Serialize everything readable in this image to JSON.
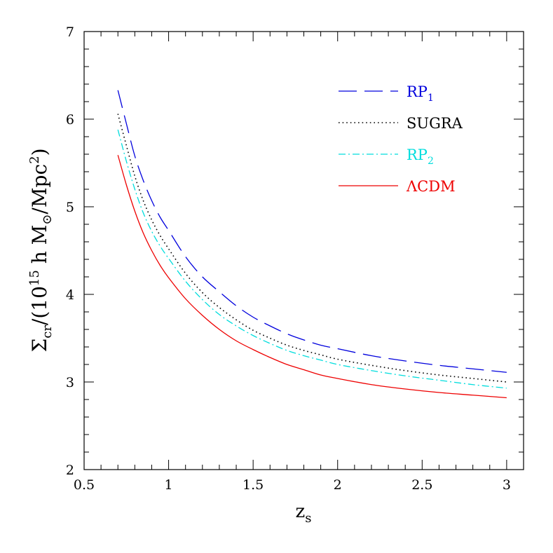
{
  "chart_data": {
    "type": "line",
    "xlabel": {
      "main": "z",
      "sub": "s"
    },
    "ylabel": {
      "sigma": "Σ",
      "sigma_sub": "cr",
      "open": "/(10",
      "exp": "15",
      "h": " h M",
      "sun": "⊙",
      "tail": "/Mpc",
      "tail_exp": "2",
      "close": ")"
    },
    "xlim": [
      0.5,
      3.1
    ],
    "ylim": [
      2,
      7
    ],
    "x_ticks": [
      "0.5",
      "1",
      "1.5",
      "2",
      "2.5",
      "3"
    ],
    "y_ticks": [
      "2",
      "3",
      "4",
      "5",
      "6",
      "7"
    ],
    "grid": false,
    "legend_position": "top-right",
    "series": [
      {
        "name": "RP",
        "name_sub": "1",
        "color": "#0000dd",
        "style": "long-dash",
        "points": [
          [
            0.7,
            6.33
          ],
          [
            0.75,
            5.95
          ],
          [
            0.8,
            5.58
          ],
          [
            0.85,
            5.3
          ],
          [
            0.9,
            5.07
          ],
          [
            0.95,
            4.88
          ],
          [
            1.0,
            4.73
          ],
          [
            1.1,
            4.43
          ],
          [
            1.2,
            4.2
          ],
          [
            1.3,
            4.03
          ],
          [
            1.4,
            3.87
          ],
          [
            1.5,
            3.74
          ],
          [
            1.6,
            3.64
          ],
          [
            1.7,
            3.55
          ],
          [
            1.8,
            3.48
          ],
          [
            1.9,
            3.42
          ],
          [
            2.0,
            3.38
          ],
          [
            2.2,
            3.3
          ],
          [
            2.4,
            3.24
          ],
          [
            2.6,
            3.19
          ],
          [
            2.8,
            3.15
          ],
          [
            3.0,
            3.11
          ]
        ]
      },
      {
        "name": "SUGRA",
        "name_sub": "",
        "color": "#000000",
        "style": "dotted",
        "points": [
          [
            0.7,
            6.06
          ],
          [
            0.75,
            5.7
          ],
          [
            0.8,
            5.35
          ],
          [
            0.85,
            5.07
          ],
          [
            0.9,
            4.85
          ],
          [
            0.95,
            4.67
          ],
          [
            1.0,
            4.52
          ],
          [
            1.1,
            4.24
          ],
          [
            1.2,
            4.02
          ],
          [
            1.3,
            3.85
          ],
          [
            1.4,
            3.71
          ],
          [
            1.5,
            3.59
          ],
          [
            1.6,
            3.5
          ],
          [
            1.7,
            3.42
          ],
          [
            1.8,
            3.36
          ],
          [
            1.9,
            3.31
          ],
          [
            2.0,
            3.26
          ],
          [
            2.2,
            3.19
          ],
          [
            2.4,
            3.13
          ],
          [
            2.6,
            3.08
          ],
          [
            2.8,
            3.04
          ],
          [
            3.0,
            3.0
          ]
        ]
      },
      {
        "name": "RP",
        "name_sub": "2",
        "color": "#00dddd",
        "style": "dash-dot",
        "points": [
          [
            0.7,
            5.88
          ],
          [
            0.75,
            5.52
          ],
          [
            0.8,
            5.2
          ],
          [
            0.85,
            4.93
          ],
          [
            0.9,
            4.72
          ],
          [
            0.95,
            4.55
          ],
          [
            1.0,
            4.41
          ],
          [
            1.1,
            4.15
          ],
          [
            1.2,
            3.94
          ],
          [
            1.3,
            3.77
          ],
          [
            1.4,
            3.64
          ],
          [
            1.5,
            3.53
          ],
          [
            1.6,
            3.44
          ],
          [
            1.7,
            3.36
          ],
          [
            1.8,
            3.3
          ],
          [
            1.9,
            3.25
          ],
          [
            2.0,
            3.2
          ],
          [
            2.2,
            3.13
          ],
          [
            2.4,
            3.07
          ],
          [
            2.6,
            3.02
          ],
          [
            2.8,
            2.97
          ],
          [
            3.0,
            2.93
          ]
        ]
      },
      {
        "name": "ΛCDM",
        "name_sub": "",
        "color": "#ee0000",
        "style": "solid",
        "points": [
          [
            0.7,
            5.59
          ],
          [
            0.75,
            5.25
          ],
          [
            0.8,
            4.95
          ],
          [
            0.85,
            4.7
          ],
          [
            0.9,
            4.5
          ],
          [
            0.95,
            4.33
          ],
          [
            1.0,
            4.19
          ],
          [
            1.1,
            3.95
          ],
          [
            1.2,
            3.76
          ],
          [
            1.3,
            3.6
          ],
          [
            1.4,
            3.47
          ],
          [
            1.5,
            3.37
          ],
          [
            1.6,
            3.28
          ],
          [
            1.7,
            3.2
          ],
          [
            1.8,
            3.14
          ],
          [
            1.9,
            3.08
          ],
          [
            2.0,
            3.04
          ],
          [
            2.2,
            2.97
          ],
          [
            2.4,
            2.92
          ],
          [
            2.6,
            2.88
          ],
          [
            2.8,
            2.85
          ],
          [
            3.0,
            2.82
          ]
        ]
      }
    ]
  }
}
